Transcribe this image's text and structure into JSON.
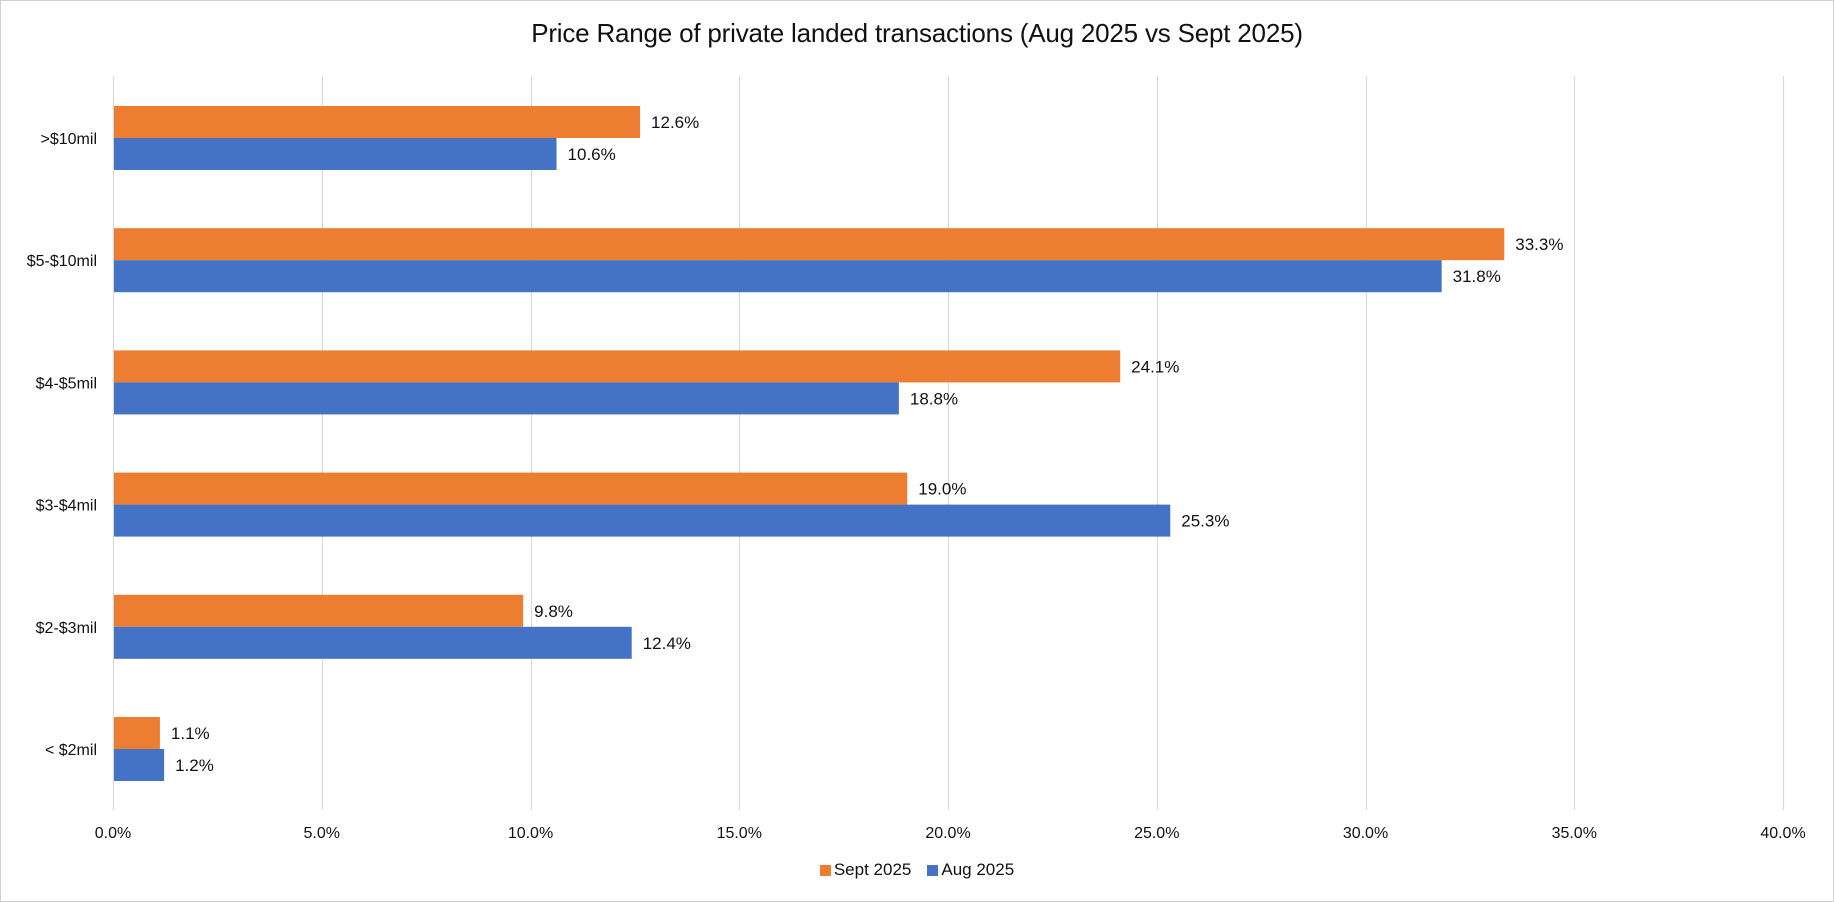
{
  "chart_data": {
    "type": "bar",
    "orientation": "horizontal",
    "title": "Price Range of private landed transactions (Aug 2025 vs Sept 2025)",
    "categories": [
      ">$10mil",
      "$5-$10mil",
      "$4-$5mil",
      "$3-$4mil",
      "$2-$3mil",
      "< $2mil"
    ],
    "series": [
      {
        "name": "Sept 2025",
        "color": "#ED7D31",
        "values": [
          12.6,
          33.3,
          24.1,
          19.0,
          9.8,
          1.1
        ],
        "labels": [
          "12.6%",
          "33.3%",
          "24.1%",
          "19.0%",
          "9.8%",
          "1.1%"
        ]
      },
      {
        "name": "Aug 2025",
        "color": "#4472C4",
        "values": [
          10.6,
          31.8,
          18.8,
          25.3,
          12.4,
          1.2
        ],
        "labels": [
          "10.6%",
          "31.8%",
          "18.8%",
          "25.3%",
          "12.4%",
          "1.2%"
        ]
      }
    ],
    "xlabel": "",
    "ylabel": "",
    "xlim": [
      0,
      40
    ],
    "xticks": [
      0,
      5,
      10,
      15,
      20,
      25,
      30,
      35,
      40
    ],
    "xtick_labels": [
      "0.0%",
      "5.0%",
      "10.0%",
      "15.0%",
      "20.0%",
      "25.0%",
      "30.0%",
      "35.0%",
      "40.0%"
    ],
    "grid": "vertical",
    "legend": "bottom-center",
    "gridline_color": "#D9D9D9"
  }
}
